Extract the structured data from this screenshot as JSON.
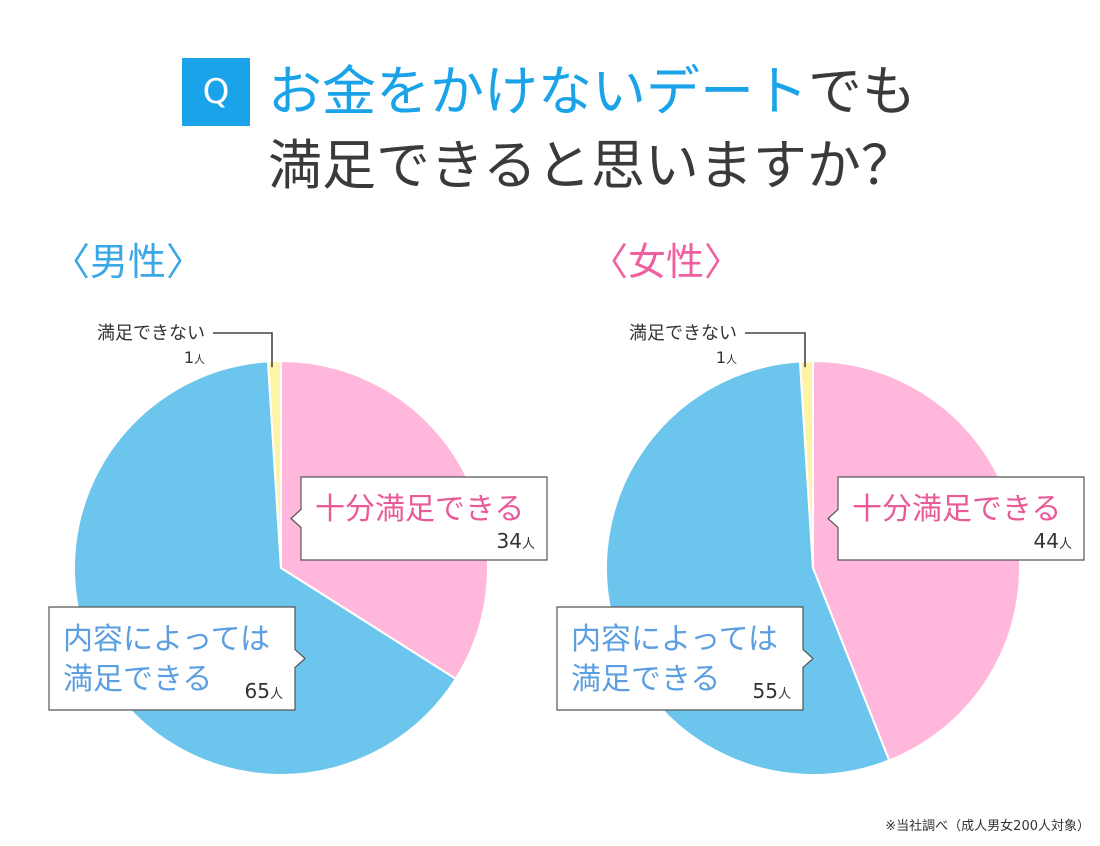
{
  "question": {
    "badge": "Q",
    "title_highlight": "お金をかけないデート",
    "title_rest": "でも",
    "title_line2": "満足できると思いますか？"
  },
  "colors": {
    "accent": "#1aa3e8",
    "pink_slice": "#ffb8dc",
    "blue_slice": "#6cc5ec",
    "yellow_slice": "#fff3a6",
    "pink_text": "#ea5a98",
    "blue_text": "#5b9fe0"
  },
  "footnote": "※当社調べ（成人男女200人対象）",
  "chart_data": [
    {
      "type": "pie",
      "title": "〈男性〉",
      "unit": "人",
      "slices": [
        {
          "label": "十分満足できる",
          "value": 34,
          "color": "#ffb8dc"
        },
        {
          "label": "内容によっては満足できる",
          "value": 65,
          "color": "#6cc5ec"
        },
        {
          "label": "満足できない",
          "value": 1,
          "color": "#fff3a6"
        }
      ]
    },
    {
      "type": "pie",
      "title": "〈女性〉",
      "unit": "人",
      "slices": [
        {
          "label": "十分満足できる",
          "value": 44,
          "color": "#ffb8dc"
        },
        {
          "label": "内容によっては満足できる",
          "value": 55,
          "color": "#6cc5ec"
        },
        {
          "label": "満足できない",
          "value": 1,
          "color": "#fff3a6"
        }
      ]
    }
  ]
}
